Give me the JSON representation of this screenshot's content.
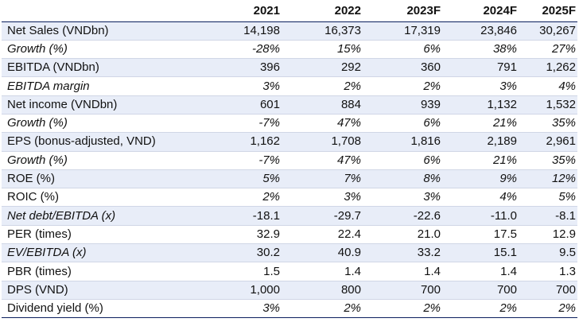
{
  "table": {
    "years": [
      "2021",
      "2022",
      "2023F",
      "2024F",
      "2025F"
    ],
    "rows": [
      {
        "label": "Net Sales (VNDbn)",
        "values": [
          "14,198",
          "16,373",
          "17,319",
          "23,846",
          "30,267"
        ]
      },
      {
        "label": "Growth (%)",
        "values": [
          "-28%",
          "15%",
          "6%",
          "38%",
          "27%"
        ]
      },
      {
        "label": "EBITDA (VNDbn)",
        "values": [
          "396",
          "292",
          "360",
          "791",
          "1,262"
        ]
      },
      {
        "label": "EBITDA margin",
        "values": [
          "3%",
          "2%",
          "2%",
          "3%",
          "4%"
        ]
      },
      {
        "label": "Net income (VNDbn)",
        "values": [
          "601",
          "884",
          "939",
          "1,132",
          "1,532"
        ]
      },
      {
        "label": "Growth (%)",
        "values": [
          "-7%",
          "47%",
          "6%",
          "21%",
          "35%"
        ]
      },
      {
        "label": "EPS (bonus-adjusted, VND)",
        "values": [
          "1,162",
          "1,708",
          "1,816",
          "2,189",
          "2,961"
        ]
      },
      {
        "label": "Growth (%)",
        "values": [
          "-7%",
          "47%",
          "6%",
          "21%",
          "35%"
        ]
      },
      {
        "label": "ROE (%)",
        "values": [
          "5%",
          "7%",
          "8%",
          "9%",
          "12%"
        ]
      },
      {
        "label": "ROIC (%)",
        "values": [
          "2%",
          "3%",
          "3%",
          "4%",
          "5%"
        ]
      },
      {
        "label": "Net debt/EBITDA (x)",
        "values": [
          "-18.1",
          "-29.7",
          "-22.6",
          "-11.0",
          "-8.1"
        ]
      },
      {
        "label": "PER (times)",
        "values": [
          "32.9",
          "22.4",
          "21.0",
          "17.5",
          "12.9"
        ]
      },
      {
        "label": "EV/EBITDA (x)",
        "values": [
          "30.2",
          "40.9",
          "33.2",
          "15.1",
          "9.5"
        ]
      },
      {
        "label": "PBR (times)",
        "values": [
          "1.5",
          "1.4",
          "1.4",
          "1.4",
          "1.3"
        ]
      },
      {
        "label": "DPS (VND)",
        "values": [
          "1,000",
          "800",
          "700",
          "700",
          "700"
        ]
      },
      {
        "label": "Dividend yield (%)",
        "values": [
          "3%",
          "2%",
          "2%",
          "2%",
          "2%"
        ]
      }
    ]
  }
}
